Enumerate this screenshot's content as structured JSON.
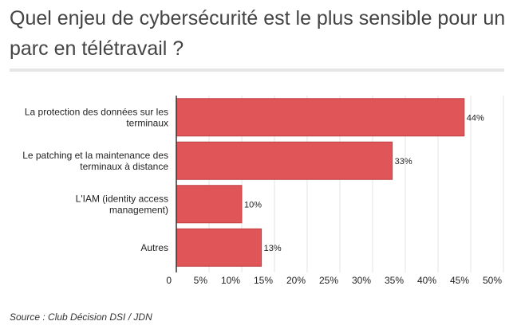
{
  "title": "Quel enjeu de cybersécurité est le plus sensible pour un parc en télétravail ?",
  "source": "Source :  Club Décision DSI / JDN",
  "chart_data": {
    "type": "bar",
    "orientation": "horizontal",
    "title": "Quel enjeu de cybersécurité est le plus sensible pour un parc en télétravail ?",
    "categories": [
      [
        "La protection des données sur les",
        "terminaux"
      ],
      [
        "Le patching et la maintenance des",
        "terminaux à distance"
      ],
      [
        "L'IAM (identity access",
        "management)"
      ],
      [
        "Autres"
      ]
    ],
    "values": [
      44,
      33,
      10,
      13
    ],
    "value_labels": [
      "44%",
      "33%",
      "10%",
      "13%"
    ],
    "xlim": [
      0,
      50
    ],
    "ticks": [
      0,
      5,
      10,
      15,
      20,
      25,
      30,
      35,
      40,
      45,
      50
    ],
    "tick_labels": [
      "0",
      "5%",
      "10%",
      "15%",
      "20%",
      "25%",
      "30%",
      "35%",
      "40%",
      "45%",
      "50%"
    ],
    "bar_color": "#e05558",
    "bar_border": "#c03f42",
    "grid": true,
    "legend": "none"
  }
}
